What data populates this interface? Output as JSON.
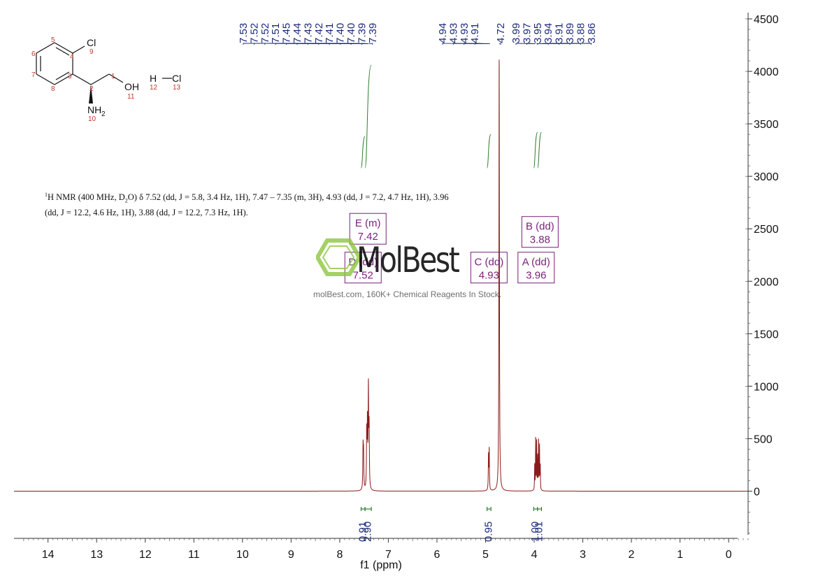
{
  "chart_data": {
    "type": "line",
    "title": "",
    "xlabel": "f1 (ppm)",
    "ylabel": "",
    "xlim": [
      14.7,
      -0.4
    ],
    "ylim": [
      -450,
      4560
    ],
    "x_ticks": [
      14,
      13,
      12,
      11,
      10,
      9,
      8,
      7,
      6,
      5,
      4,
      3,
      2,
      1,
      0
    ],
    "y_ticks": [
      0,
      500,
      1000,
      1500,
      2000,
      2500,
      3000,
      3500,
      4000,
      4500
    ],
    "x_tick_labels": [
      "14",
      "13",
      "12",
      "11",
      "10",
      "9",
      "8",
      "7",
      "6",
      "5",
      "4",
      "3",
      "2",
      "1",
      "0"
    ],
    "y_tick_labels": [
      "0",
      "500",
      "1000",
      "1500",
      "2000",
      "2500",
      "3000",
      "3500",
      "4000",
      "4500"
    ],
    "line_color": "#8b1a1a",
    "peaks": [
      {
        "x": 7.52,
        "y": 390,
        "w": 0.006
      },
      {
        "x": 7.51,
        "y": 330,
        "w": 0.006
      },
      {
        "x": 7.445,
        "y": 520,
        "w": 0.006
      },
      {
        "x": 7.43,
        "y": 600,
        "w": 0.006
      },
      {
        "x": 7.41,
        "y": 930,
        "w": 0.006
      },
      {
        "x": 7.395,
        "y": 560,
        "w": 0.006
      },
      {
        "x": 4.94,
        "y": 330,
        "w": 0.005
      },
      {
        "x": 4.925,
        "y": 390,
        "w": 0.005
      },
      {
        "x": 4.72,
        "y": 4140,
        "w": 0.006
      },
      {
        "x": 3.99,
        "y": 240,
        "w": 0.004
      },
      {
        "x": 3.97,
        "y": 490,
        "w": 0.004
      },
      {
        "x": 3.95,
        "y": 460,
        "w": 0.004
      },
      {
        "x": 3.93,
        "y": 310,
        "w": 0.004
      },
      {
        "x": 3.91,
        "y": 470,
        "w": 0.004
      },
      {
        "x": 3.89,
        "y": 420,
        "w": 0.004
      },
      {
        "x": 3.875,
        "y": 230,
        "w": 0.004
      }
    ],
    "peak_labels": [
      "7.53",
      "7.52",
      "7.52",
      "7.51",
      "7.45",
      "7.44",
      "7.43",
      "7.42",
      "7.41",
      "7.40",
      "7.40",
      "7.39",
      "7.39",
      "4.94",
      "4.93",
      "4.93",
      "4.91",
      "4.72",
      "3.99",
      "3.97",
      "3.95",
      "3.94",
      "3.91",
      "3.89",
      "3.88",
      "3.86"
    ],
    "peak_label_groups": [
      {
        "start": 0,
        "count": 13,
        "pos_from": 7.525,
        "pos_to": 7.39
      },
      {
        "start": 13,
        "count": 4,
        "pos_from": 4.94,
        "pos_to": 4.91
      },
      {
        "start": 17,
        "count": 1,
        "pos_from": 4.72,
        "pos_to": 4.72
      },
      {
        "start": 18,
        "count": 8,
        "pos_from": 3.99,
        "pos_to": 3.86
      }
    ],
    "integrals": [
      {
        "label": "0.91",
        "from": 7.56,
        "to": 7.48,
        "curve_from": 3080,
        "curve_to": 3380
      },
      {
        "label": "2.90",
        "from": 7.48,
        "to": 7.35,
        "curve_from": 3080,
        "curve_to": 4060
      },
      {
        "label": "0.95",
        "from": 4.97,
        "to": 4.89,
        "curve_from": 3080,
        "curve_to": 3400
      },
      {
        "label": "1.00",
        "from": 4.01,
        "to": 3.93,
        "curve_from": 3080,
        "curve_to": 3420
      },
      {
        "label": "1.01",
        "from": 3.93,
        "to": 3.85,
        "curve_from": 3080,
        "curve_to": 3420
      }
    ],
    "multiplets": [
      {
        "name": "E (m)",
        "shift": "7.42",
        "x": 7.42,
        "y": 2500
      },
      {
        "name": "D (dd)",
        "shift": "7.52",
        "x": 7.52,
        "y": 2130
      },
      {
        "name": "C (dd)",
        "shift": "4.93",
        "x": 4.93,
        "y": 2130
      },
      {
        "name": "B (dd)",
        "shift": "3.88",
        "x": 3.88,
        "y": 2470
      },
      {
        "name": "A (dd)",
        "shift": "3.96",
        "x": 3.96,
        "y": 2130
      }
    ]
  },
  "molecule": {
    "atoms": {
      "cl1": "Cl",
      "cl1_num": "9",
      "oh": "OH",
      "oh_num": "11",
      "nh2": "NH",
      "nh2_sub": "2",
      "nh2_num": "10",
      "h": "H",
      "h_num": "12",
      "cl2": "Cl",
      "cl2_num": "13",
      "c1": "1",
      "c2": "2",
      "c3": "3",
      "c4": "4",
      "c5": "5",
      "c6": "6",
      "c7": "7",
      "c8": "8"
    }
  },
  "nmr_text": {
    "sup": "1",
    "line": "H NMR (400 MHz, D",
    "sub": "2",
    "line_rest": "O) δ 7.52 (dd, J = 5.8, 3.4 Hz, 1H), 7.47 – 7.35 (m, 3H), 4.93 (dd, J = 7.2, 4.7 Hz, 1H), 3.96 (dd, J = 12.2, 4.6 Hz, 1H), 3.88 (dd, J = 12.2, 7.3 Hz, 1H)."
  },
  "watermark": {
    "name": "MolBest",
    "tagline": "molBest.com, 160K+ Chemical Reagents In Stock.",
    "logo_color": "#8cc63f"
  }
}
